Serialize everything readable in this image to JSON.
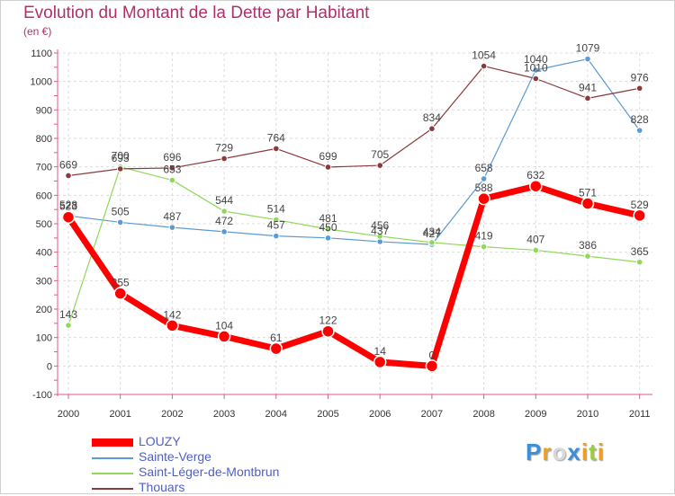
{
  "page": {
    "title": "Evolution du Montant de la Dette par Habitant",
    "subtitle": "(en €)"
  },
  "logo": {
    "text": "Proxiti",
    "letters": [
      {
        "ch": "P",
        "color": "#3a8fd8"
      },
      {
        "ch": "r",
        "color": "#e9a023"
      },
      {
        "ch": "o",
        "color": "#d9d9d9"
      },
      {
        "ch": "x",
        "color": "#3a8fd8"
      },
      {
        "ch": "i",
        "color": "#e9a023"
      },
      {
        "ch": "t",
        "color": "#9bcf3a"
      },
      {
        "ch": "i",
        "color": "#e9a023"
      }
    ]
  },
  "chart_data": {
    "type": "line",
    "title": "Evolution du Montant de la Dette par Habitant",
    "subtitle": "(en €)",
    "x": [
      "2000",
      "2001",
      "2002",
      "2003",
      "2004",
      "2005",
      "2006",
      "2007",
      "2008",
      "2009",
      "2010",
      "2011"
    ],
    "ylim": [
      -100,
      1100
    ],
    "yticks": [
      -100,
      0,
      100,
      200,
      300,
      400,
      500,
      600,
      700,
      800,
      900,
      1000,
      1100
    ],
    "grid": "horizontal-dashed",
    "legend": "bottom-left",
    "series": [
      {
        "name": "Sainte-Verge",
        "color": "#5a9ad6",
        "width": 1.2,
        "point_radius": 3.3,
        "values": [
          528,
          505,
          487,
          472,
          457,
          450,
          437,
          427,
          658,
          1040,
          1079,
          828
        ]
      },
      {
        "name": "Saint-Léger-de-Montbrun",
        "color": "#8fd85a",
        "width": 1.2,
        "point_radius": 3.3,
        "values": [
          143,
          700,
          653,
          544,
          514,
          481,
          456,
          434,
          419,
          407,
          386,
          365
        ]
      },
      {
        "name": "Thouars",
        "color": "#8a3a3a",
        "width": 1.2,
        "point_radius": 3.3,
        "values": [
          669,
          693,
          696,
          729,
          764,
          699,
          705,
          834,
          1054,
          1010,
          941,
          976
        ]
      },
      {
        "name": "LOUZY",
        "color": "#ff0000",
        "width": 7,
        "point_radius": 6.5,
        "values": [
          523,
          255,
          142,
          104,
          61,
          122,
          14,
          0,
          588,
          632,
          571,
          529
        ]
      }
    ],
    "legend_order": [
      "LOUZY",
      "Sainte-Verge",
      "Saint-Léger-de-Montbrun",
      "Thouars"
    ]
  }
}
